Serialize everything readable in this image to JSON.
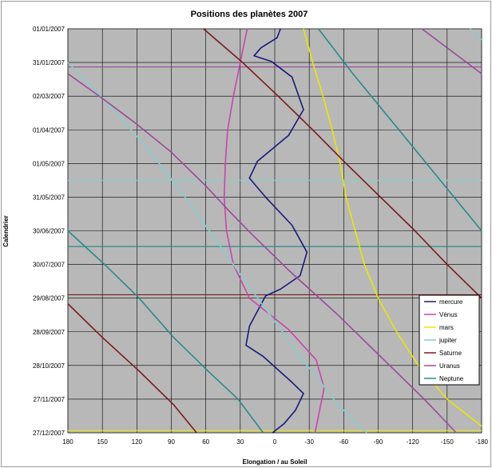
{
  "chart_data": {
    "type": "line",
    "title": "Positions des planètes 2007",
    "xlabel": "Elongation / au Soleil",
    "ylabel": "Calendrier",
    "xlim": [
      180,
      -180
    ],
    "x_ticks": [
      180,
      150,
      120,
      90,
      60,
      30,
      0,
      -30,
      -60,
      -90,
      -120,
      -150,
      -180
    ],
    "y_ticks": [
      "01/01/2007",
      "31/01/2007",
      "02/03/2007",
      "01/04/2007",
      "01/05/2007",
      "31/05/2007",
      "30/06/2007",
      "30/07/2007",
      "29/08/2007",
      "28/09/2007",
      "28/10/2007",
      "27/11/2007",
      "27/12/2007"
    ],
    "ylim_days": [
      0,
      360
    ],
    "grid": true,
    "legend_position": "right",
    "background_color": "#b8b8b8",
    "series": [
      {
        "name": "mercure",
        "color": "#1a1a7a",
        "points": [
          [
            -5,
            0
          ],
          [
            -2,
            8
          ],
          [
            12,
            17
          ],
          [
            18,
            24
          ],
          [
            3,
            29
          ],
          [
            -15,
            43
          ],
          [
            -25,
            72
          ],
          [
            -12,
            95
          ],
          [
            15,
            118
          ],
          [
            22,
            133
          ],
          [
            8,
            150
          ],
          [
            -15,
            175
          ],
          [
            -28,
            199
          ],
          [
            -22,
            220
          ],
          [
            -5,
            232
          ],
          [
            8,
            238
          ],
          [
            22,
            265
          ],
          [
            25,
            282
          ],
          [
            10,
            292
          ],
          [
            -15,
            315
          ],
          [
            -25,
            325
          ],
          [
            -18,
            340
          ],
          [
            -8,
            352
          ],
          [
            2,
            360
          ]
        ]
      },
      {
        "name": "Vénus",
        "color": "#cc44aa",
        "points": [
          [
            24,
            0
          ],
          [
            30,
            30
          ],
          [
            36,
            60
          ],
          [
            41,
            90
          ],
          [
            43,
            120
          ],
          [
            44,
            150
          ],
          [
            42,
            180
          ],
          [
            36,
            210
          ],
          [
            22,
            240
          ],
          [
            -12,
            268
          ],
          [
            -36,
            295
          ],
          [
            -43,
            320
          ],
          [
            -38,
            345
          ],
          [
            -35,
            360
          ]
        ]
      },
      {
        "name": "mars",
        "color": "#e8e800",
        "points": [
          [
            -25,
            0
          ],
          [
            -33,
            30
          ],
          [
            -42,
            60
          ],
          [
            -50,
            90
          ],
          [
            -57,
            120
          ],
          [
            -62,
            150
          ],
          [
            -70,
            180
          ],
          [
            -78,
            210
          ],
          [
            -90,
            240
          ],
          [
            -106,
            270
          ],
          [
            -125,
            300
          ],
          [
            -150,
            330
          ],
          [
            -180,
            354
          ]
        ]
      },
      {
        "name": "jupiter",
        "color": "#88cccc",
        "points": [
          [
            -170,
            0
          ],
          [
            -180,
            10
          ]
        ]
      },
      {
        "name": "jupiter",
        "color": "#88cccc",
        "points": [
          [
            180,
            30
          ],
          [
            142,
            70
          ],
          [
            108,
            110
          ],
          [
            78,
            150
          ],
          [
            50,
            190
          ],
          [
            22,
            230
          ],
          [
            -5,
            268
          ],
          [
            -20,
            290
          ],
          [
            -40,
            315
          ],
          [
            -55,
            335
          ],
          [
            -80,
            360
          ]
        ]
      },
      {
        "name": "Saturne",
        "color": "#7a1a1a",
        "points": [
          [
            62,
            0
          ],
          [
            28,
            30
          ],
          [
            -3,
            60
          ],
          [
            -33,
            90
          ],
          [
            -62,
            120
          ],
          [
            -92,
            150
          ],
          [
            -122,
            180
          ],
          [
            -150,
            210
          ],
          [
            -180,
            240
          ]
        ]
      },
      {
        "name": "Saturne",
        "color": "#7a1a1a",
        "points": [
          [
            180,
            245
          ],
          [
            150,
            275
          ],
          [
            118,
            305
          ],
          [
            88,
            335
          ],
          [
            68,
            360
          ]
        ]
      },
      {
        "name": "Uranus",
        "color": "#9a4a9a",
        "points": [
          [
            -128,
            0
          ],
          [
            -180,
            40
          ]
        ]
      },
      {
        "name": "Uranus",
        "color": "#9a4a9a",
        "points": [
          [
            180,
            40
          ],
          [
            150,
            62
          ],
          [
            120,
            85
          ],
          [
            90,
            110
          ],
          [
            60,
            140
          ],
          [
            40,
            162
          ],
          [
            20,
            183
          ],
          [
            -12,
            215
          ],
          [
            -55,
            255
          ],
          [
            -95,
            295
          ],
          [
            -130,
            330
          ],
          [
            -158,
            360
          ]
        ]
      },
      {
        "name": "Neptune",
        "color": "#2a8a8a",
        "points": [
          [
            -38,
            0
          ],
          [
            -68,
            40
          ],
          [
            -100,
            80
          ],
          [
            -128,
            115
          ],
          [
            -160,
            155
          ],
          [
            -180,
            180
          ]
        ]
      },
      {
        "name": "Neptune",
        "color": "#2a8a8a",
        "points": [
          [
            180,
            180
          ],
          [
            148,
            210
          ],
          [
            118,
            240
          ],
          [
            88,
            275
          ],
          [
            58,
            305
          ],
          [
            32,
            330
          ],
          [
            10,
            360
          ]
        ]
      }
    ],
    "h_lines": [
      {
        "color": "#9a4a9a",
        "y": 34
      },
      {
        "color": "#88cccc",
        "y": 135
      },
      {
        "color": "#2a8a8a",
        "y": 194
      },
      {
        "color": "#7a1a1a",
        "y": 237
      },
      {
        "color": "#e8e800",
        "y": 358
      }
    ],
    "legend": [
      "mercure",
      "Vénus",
      "mars",
      "jupiter",
      "Saturne",
      "Uranus",
      "Neptune"
    ],
    "legend_colors": [
      "#1a1a7a",
      "#cc44aa",
      "#e8e800",
      "#88cccc",
      "#7a1a1a",
      "#9a4a9a",
      "#2a8a8a"
    ]
  }
}
